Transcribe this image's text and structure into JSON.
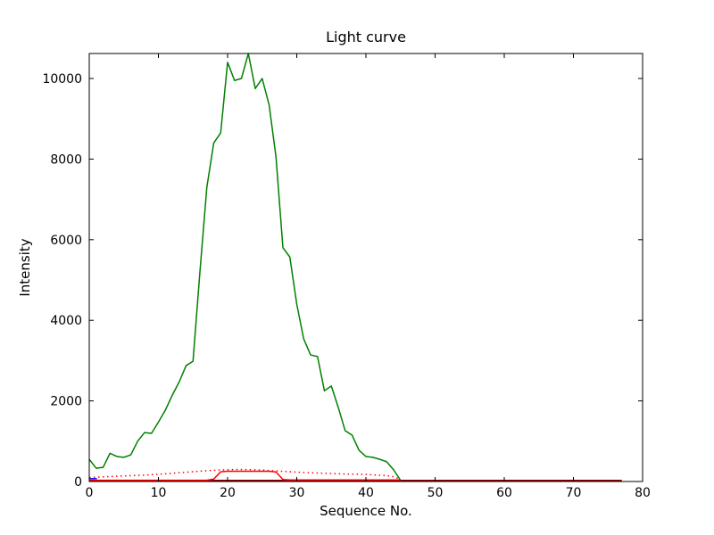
{
  "figure": {
    "background": "#ffffff",
    "axes_color": "#000000"
  },
  "chart_data": {
    "type": "line",
    "title": "Light curve",
    "xlabel": "Sequence No.",
    "ylabel": "Intensity",
    "xlim": [
      0,
      80
    ],
    "ylim": [
      0,
      10620
    ],
    "x_ticks": [
      0,
      10,
      20,
      30,
      40,
      50,
      60,
      70,
      80
    ],
    "y_ticks": [
      0,
      2000,
      4000,
      6000,
      8000,
      10000
    ],
    "grid": false,
    "legend": "none",
    "series": [
      {
        "name": "baseline-curve",
        "color": "#8b0000",
        "style": "solid",
        "x": [
          0,
          77
        ],
        "y": [
          28,
          28
        ]
      },
      {
        "name": "blue-start-segment",
        "color": "#0000ff",
        "style": "solid",
        "x": [
          0,
          1.1
        ],
        "y": [
          70,
          70
        ]
      },
      {
        "name": "main-light-curve",
        "color": "#008000",
        "style": "solid",
        "x": [
          0,
          1,
          2,
          3,
          4,
          5,
          6,
          7,
          8,
          9,
          10,
          11,
          12,
          13,
          14,
          15,
          16,
          17,
          18,
          19,
          20,
          21,
          22,
          23,
          24,
          25,
          26,
          27,
          28,
          29,
          30,
          31,
          32,
          33,
          34,
          35,
          36,
          37,
          38,
          39,
          40,
          41,
          42,
          43,
          44,
          45
        ],
        "y": [
          550,
          330,
          350,
          700,
          620,
          600,
          660,
          1000,
          1215,
          1195,
          1475,
          1770,
          2140,
          2470,
          2875,
          2985,
          5200,
          7300,
          8400,
          8650,
          10400,
          9950,
          10000,
          10620,
          9750,
          10000,
          9350,
          8050,
          5800,
          5570,
          4400,
          3540,
          3140,
          3100,
          2250,
          2370,
          1840,
          1260,
          1150,
          775,
          620,
          600,
          550,
          490,
          290,
          30
        ]
      },
      {
        "name": "red-bump-curve",
        "color": "#ff0000",
        "style": "solid",
        "x": [
          0,
          1,
          2,
          3,
          4,
          5,
          6,
          7,
          8,
          9,
          10,
          11,
          12,
          13,
          14,
          15,
          16,
          17,
          18,
          19,
          20,
          21,
          22,
          23,
          24,
          25,
          26,
          27,
          28,
          29,
          30,
          31,
          32,
          33,
          34,
          35,
          36,
          37,
          38,
          39,
          40,
          41,
          42,
          43,
          44,
          45
        ],
        "y": [
          30,
          30,
          30,
          30,
          30,
          30,
          30,
          30,
          30,
          30,
          30,
          30,
          30,
          30,
          30,
          30,
          30,
          30,
          60,
          240,
          255,
          255,
          255,
          255,
          255,
          255,
          255,
          235,
          50,
          40,
          40,
          40,
          40,
          40,
          40,
          40,
          40,
          40,
          40,
          40,
          40,
          40,
          40,
          40,
          40,
          40
        ]
      },
      {
        "name": "dotted-background-curve",
        "color": "#ff0000",
        "style": "dotted",
        "x": [
          0,
          1,
          2,
          3,
          4,
          5,
          6,
          7,
          8,
          9,
          10,
          11,
          12,
          13,
          14,
          15,
          16,
          17,
          18,
          19,
          20,
          21,
          22,
          23,
          24,
          25,
          26,
          27,
          28,
          29,
          30,
          31,
          32,
          33,
          34,
          35,
          36,
          37,
          38,
          39,
          40,
          41,
          42,
          43,
          44,
          45
        ],
        "y": [
          100,
          108,
          115,
          122,
          130,
          138,
          145,
          152,
          160,
          170,
          180,
          190,
          205,
          218,
          230,
          242,
          255,
          268,
          278,
          285,
          292,
          298,
          300,
          296,
          290,
          282,
          272,
          262,
          252,
          242,
          232,
          224,
          216,
          210,
          204,
          198,
          192,
          188,
          184,
          180,
          176,
          165,
          155,
          145,
          120,
          50
        ]
      }
    ]
  }
}
